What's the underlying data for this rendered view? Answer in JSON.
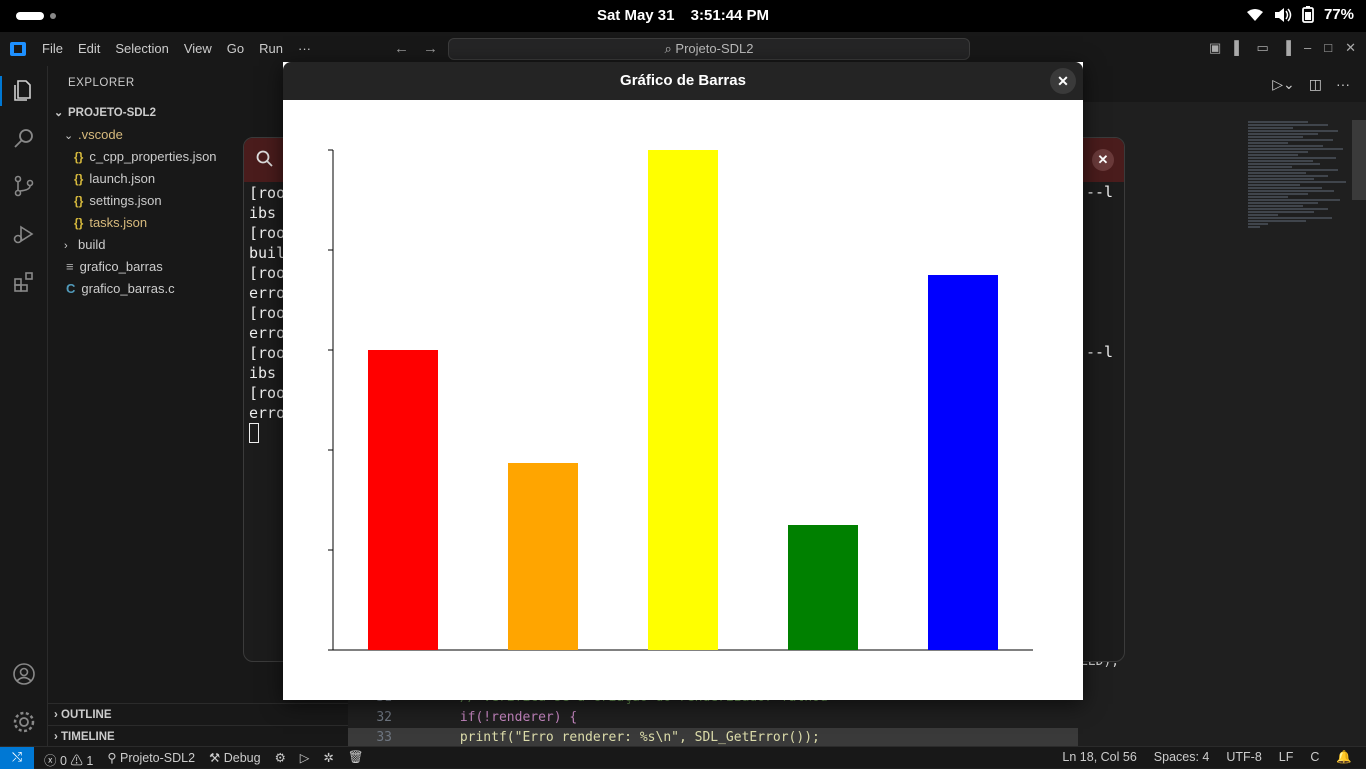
{
  "system_bar": {
    "date": "Sat May 31",
    "time": "3:51:44 PM",
    "battery": "77%"
  },
  "menubar": {
    "menus": [
      "File",
      "Edit",
      "Selection",
      "View",
      "Go",
      "Run",
      "···"
    ],
    "search": "Projeto-SDL2"
  },
  "explorer": {
    "header": "EXPLORER",
    "project": "PROJETO-SDL2",
    "items": [
      {
        "label": ".vscode",
        "type": "folder-open"
      },
      {
        "label": "c_cpp_properties.json",
        "type": "json"
      },
      {
        "label": "launch.json",
        "type": "json"
      },
      {
        "label": "settings.json",
        "type": "json"
      },
      {
        "label": "tasks.json",
        "type": "json"
      },
      {
        "label": "build",
        "type": "folder"
      },
      {
        "label": "grafico_barras",
        "type": "binary"
      },
      {
        "label": "grafico_barras.c",
        "type": "c"
      }
    ],
    "outline": "OUTLINE",
    "timeline": "TIMELINE"
  },
  "terminal": {
    "lines": [
      "[roo",
      "ibs",
      "[roo",
      "buil",
      "[roo",
      "erro",
      "[roo",
      "erro",
      "[roo",
      "ibs",
      "[roo",
      "erro"
    ],
    "right_fragments": [
      "--l",
      "--l"
    ]
  },
  "code": {
    "partial_line": "LED);",
    "lines": [
      {
        "num": "31",
        "text": "    // Verifica se a criação do renderizador falhou"
      },
      {
        "num": "32",
        "text": "    if(!renderer) {"
      },
      {
        "num": "33",
        "text": "        printf(\"Erro renderer: %s\\n\", SDL_GetError());"
      }
    ]
  },
  "chart_window": {
    "title": "Gráfico de Barras"
  },
  "chart_data": {
    "type": "bar",
    "categories": [
      "",
      "",
      "",
      "",
      ""
    ],
    "values": [
      300,
      187,
      500,
      125,
      375
    ],
    "colors": [
      "#ff0000",
      "#ffa500",
      "#ffff00",
      "#008000",
      "#0000ff"
    ],
    "ylim": [
      0,
      500
    ],
    "yticks": [
      0,
      100,
      200,
      300,
      400,
      500
    ],
    "title": "",
    "xlabel": "",
    "ylabel": ""
  },
  "statusbar": {
    "errors": "0",
    "warnings": "1",
    "project": "Projeto-SDL2",
    "debug": "Debug",
    "position": "Ln 18, Col 56",
    "spaces": "Spaces: 4",
    "encoding": "UTF-8",
    "eol": "LF",
    "language": "C"
  }
}
